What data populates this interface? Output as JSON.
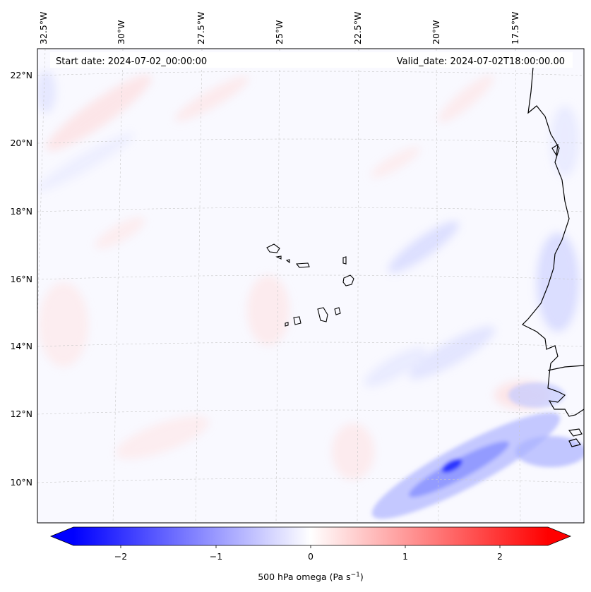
{
  "header": {
    "start_date": "Start date: 2024-07-02_00:00:00",
    "valid_date": "Valid_date: 2024-07-02T18:00:00.00"
  },
  "map": {
    "lon_labels": [
      "32.5°W",
      "30°W",
      "27.5°W",
      "25°W",
      "22.5°W",
      "20°W",
      "17.5°W"
    ],
    "lat_labels": [
      "22°N",
      "20°N",
      "18°N",
      "16°N",
      "14°N",
      "12°N",
      "10°N"
    ]
  },
  "colorbar": {
    "ticks": [
      "−2",
      "−1",
      "0",
      "1",
      "2"
    ],
    "label_main": "500 hPa omega (Pa s",
    "label_sup": "−1",
    "label_end": ")",
    "negative_color": "#0000ff",
    "neutral_color": "#ffffff",
    "positive_color": "#ff0000"
  }
}
